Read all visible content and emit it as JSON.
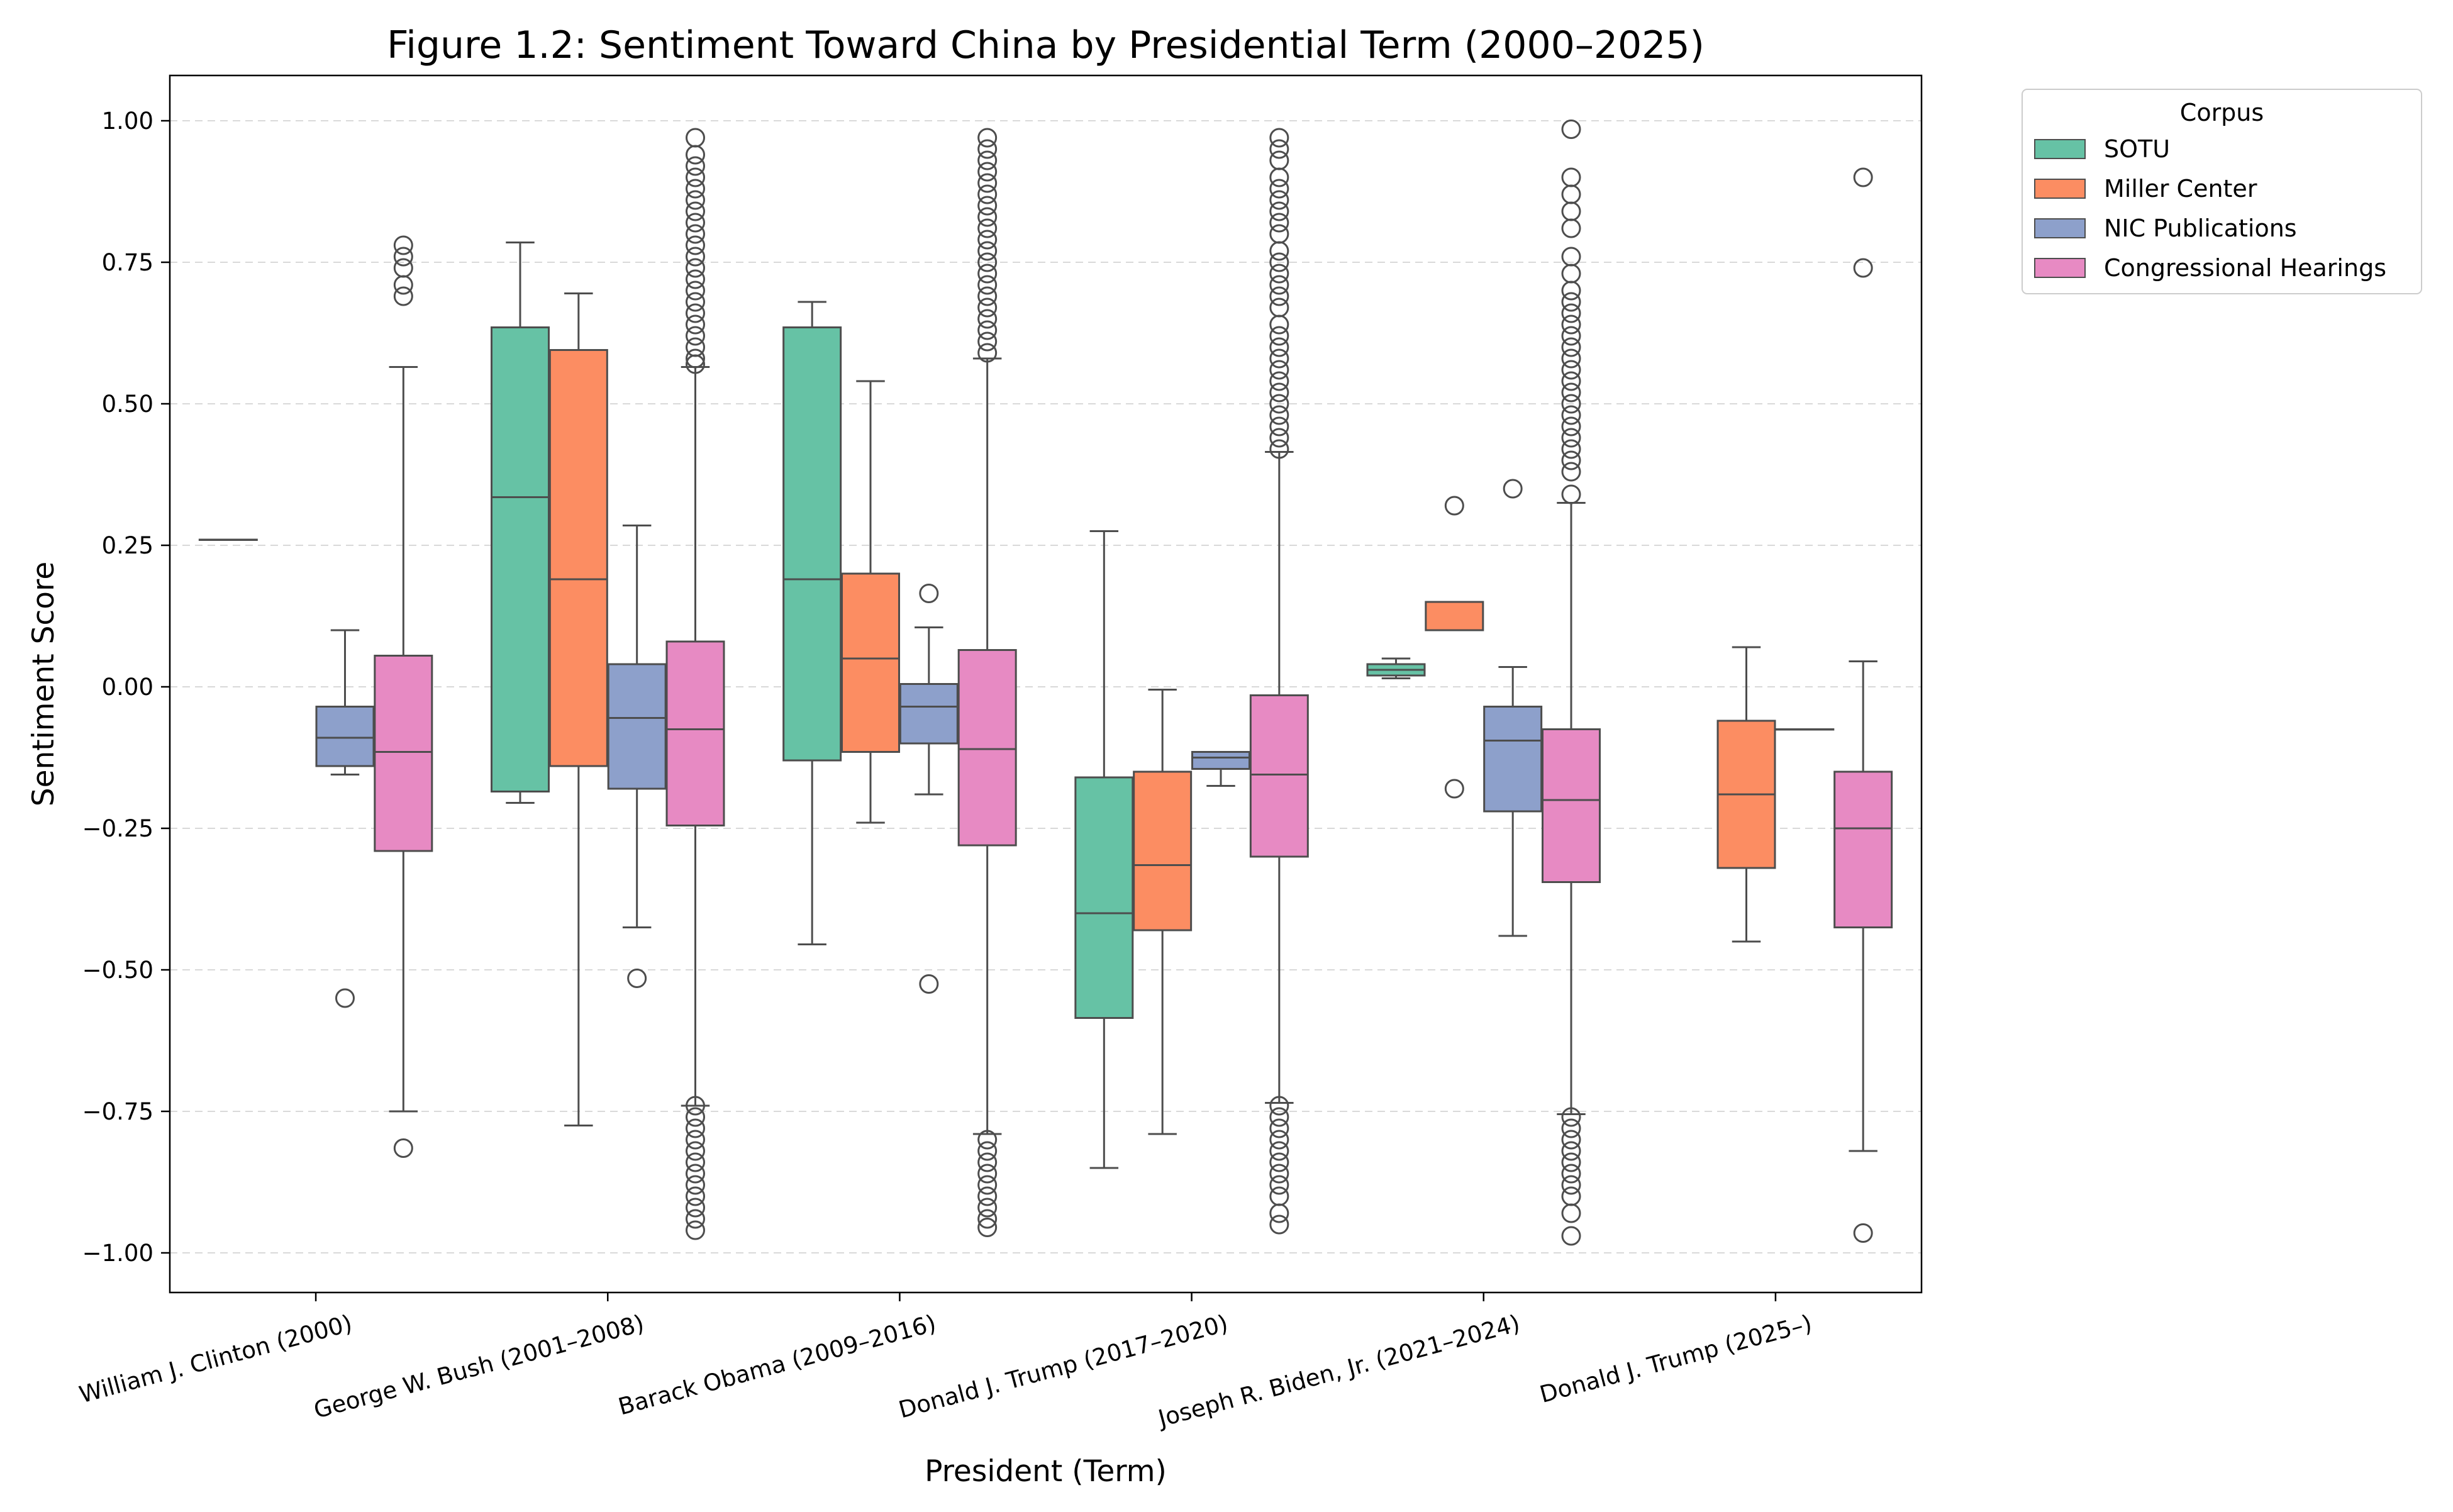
{
  "chart_data": {
    "type": "box",
    "title": "Figure 1.2: Sentiment Toward China by Presidential Term (2000–2025)",
    "xlabel": "President (Term)",
    "ylabel": "Sentiment Score",
    "ylim": [
      -1.07,
      1.08
    ],
    "yticks": [
      -1.0,
      -0.75,
      -0.5,
      -0.25,
      0.0,
      0.25,
      0.5,
      0.75,
      1.0
    ],
    "ytick_labels": [
      "−1.00",
      "−0.75",
      "−0.50",
      "−0.25",
      "0.00",
      "0.25",
      "0.50",
      "0.75",
      "1.00"
    ],
    "grid": "y-dashed",
    "legend": {
      "title": "Corpus",
      "placement": "outside-top-right"
    },
    "categories": [
      "William J. Clinton (2000)",
      "George W. Bush (2001–2008)",
      "Barack Obama (2009–2016)",
      "Donald J. Trump (2017–2020)",
      "Joseph R. Biden, Jr. (2021–2024)",
      "Donald J. Trump (2025–)"
    ],
    "series": [
      {
        "name": "SOTU",
        "color": "#66c2a5",
        "boxes": [
          {
            "category": 0,
            "whislo": 0.26,
            "q1": 0.26,
            "med": 0.26,
            "q3": 0.26,
            "whishi": 0.26,
            "fliers": []
          },
          {
            "category": 1,
            "whislo": -0.205,
            "q1": -0.185,
            "med": 0.335,
            "q3": 0.635,
            "whishi": 0.785,
            "fliers": []
          },
          {
            "category": 2,
            "whislo": -0.455,
            "q1": -0.13,
            "med": 0.19,
            "q3": 0.635,
            "whishi": 0.68,
            "fliers": []
          },
          {
            "category": 3,
            "whislo": -0.85,
            "q1": -0.585,
            "med": -0.4,
            "q3": -0.16,
            "whishi": 0.275,
            "fliers": []
          },
          {
            "category": 4,
            "whislo": 0.015,
            "q1": 0.02,
            "med": 0.03,
            "q3": 0.04,
            "whishi": 0.05,
            "fliers": []
          }
        ]
      },
      {
        "name": "Miller Center",
        "color": "#fc8d62",
        "boxes": [
          {
            "category": 1,
            "whislo": -0.775,
            "q1": -0.14,
            "med": 0.19,
            "q3": 0.595,
            "whishi": 0.695,
            "fliers": []
          },
          {
            "category": 2,
            "whislo": -0.24,
            "q1": -0.115,
            "med": 0.05,
            "q3": 0.2,
            "whishi": 0.54,
            "fliers": []
          },
          {
            "category": 3,
            "whislo": -0.79,
            "q1": -0.43,
            "med": -0.315,
            "q3": -0.15,
            "whishi": -0.005,
            "fliers": []
          },
          {
            "category": 4,
            "whislo": 0.1,
            "q1": 0.1,
            "med": 0.1,
            "q3": 0.15,
            "whishi": 0.15,
            "fliers": [
              0.32,
              -0.18
            ]
          },
          {
            "category": 5,
            "whislo": -0.45,
            "q1": -0.32,
            "med": -0.19,
            "q3": -0.06,
            "whishi": 0.07,
            "fliers": []
          }
        ]
      },
      {
        "name": "NIC Publications",
        "color": "#8da0cb",
        "boxes": [
          {
            "category": 0,
            "whislo": -0.155,
            "q1": -0.14,
            "med": -0.09,
            "q3": -0.035,
            "whishi": 0.1,
            "fliers": [
              -0.55
            ]
          },
          {
            "category": 1,
            "whislo": -0.425,
            "q1": -0.18,
            "med": -0.055,
            "q3": 0.04,
            "whishi": 0.285,
            "fliers": [
              -0.515
            ]
          },
          {
            "category": 2,
            "whislo": -0.19,
            "q1": -0.1,
            "med": -0.035,
            "q3": 0.005,
            "whishi": 0.105,
            "fliers": [
              0.165,
              -0.525
            ]
          },
          {
            "category": 3,
            "whislo": -0.175,
            "q1": -0.145,
            "med": -0.125,
            "q3": -0.115,
            "whishi": -0.115,
            "fliers": []
          },
          {
            "category": 4,
            "whislo": -0.44,
            "q1": -0.22,
            "med": -0.095,
            "q3": -0.035,
            "whishi": 0.035,
            "fliers": [
              0.35
            ]
          },
          {
            "category": 5,
            "whislo": -0.075,
            "q1": -0.075,
            "med": -0.075,
            "q3": -0.075,
            "whishi": -0.075,
            "fliers": []
          }
        ]
      },
      {
        "name": "Congressional Hearings",
        "color": "#e78ac3",
        "boxes": [
          {
            "category": 0,
            "whislo": -0.75,
            "q1": -0.29,
            "med": -0.115,
            "q3": 0.055,
            "whishi": 0.565,
            "fliers": [
              0.78,
              0.76,
              0.74,
              0.71,
              0.69,
              -0.815
            ]
          },
          {
            "category": 1,
            "whislo": -0.74,
            "q1": -0.245,
            "med": -0.075,
            "q3": 0.08,
            "whishi": 0.565,
            "fliers": [
              0.97,
              0.94,
              0.92,
              0.9,
              0.88,
              0.86,
              0.84,
              0.82,
              0.8,
              0.78,
              0.76,
              0.74,
              0.72,
              0.7,
              0.68,
              0.66,
              0.64,
              0.62,
              0.6,
              0.58,
              0.57,
              -0.74,
              -0.76,
              -0.78,
              -0.8,
              -0.82,
              -0.84,
              -0.86,
              -0.88,
              -0.9,
              -0.92,
              -0.94,
              -0.96
            ]
          },
          {
            "category": 2,
            "whislo": -0.79,
            "q1": -0.28,
            "med": -0.11,
            "q3": 0.065,
            "whishi": 0.58,
            "fliers": [
              0.97,
              0.95,
              0.93,
              0.91,
              0.89,
              0.87,
              0.85,
              0.83,
              0.81,
              0.79,
              0.77,
              0.75,
              0.73,
              0.71,
              0.69,
              0.67,
              0.65,
              0.63,
              0.61,
              0.59,
              -0.8,
              -0.82,
              -0.84,
              -0.86,
              -0.88,
              -0.9,
              -0.92,
              -0.94,
              -0.955
            ]
          },
          {
            "category": 3,
            "whislo": -0.735,
            "q1": -0.3,
            "med": -0.155,
            "q3": -0.015,
            "whishi": 0.415,
            "fliers": [
              0.97,
              0.95,
              0.93,
              0.9,
              0.88,
              0.86,
              0.84,
              0.82,
              0.8,
              0.77,
              0.75,
              0.73,
              0.71,
              0.69,
              0.67,
              0.64,
              0.62,
              0.6,
              0.58,
              0.56,
              0.54,
              0.52,
              0.5,
              0.48,
              0.46,
              0.44,
              0.42,
              -0.74,
              -0.76,
              -0.78,
              -0.8,
              -0.82,
              -0.84,
              -0.86,
              -0.88,
              -0.9,
              -0.93,
              -0.95
            ]
          },
          {
            "category": 4,
            "whislo": -0.755,
            "q1": -0.345,
            "med": -0.2,
            "q3": -0.075,
            "whishi": 0.325,
            "fliers": [
              0.985,
              0.9,
              0.87,
              0.84,
              0.81,
              0.76,
              0.73,
              0.7,
              0.68,
              0.66,
              0.64,
              0.62,
              0.6,
              0.58,
              0.56,
              0.54,
              0.52,
              0.5,
              0.48,
              0.46,
              0.44,
              0.42,
              0.4,
              0.38,
              0.34,
              -0.76,
              -0.78,
              -0.8,
              -0.82,
              -0.84,
              -0.86,
              -0.88,
              -0.9,
              -0.93,
              -0.97
            ]
          },
          {
            "category": 5,
            "whislo": -0.82,
            "q1": -0.425,
            "med": -0.25,
            "q3": -0.15,
            "whishi": 0.045,
            "fliers": [
              0.9,
              0.74,
              -0.965
            ]
          }
        ]
      }
    ]
  }
}
